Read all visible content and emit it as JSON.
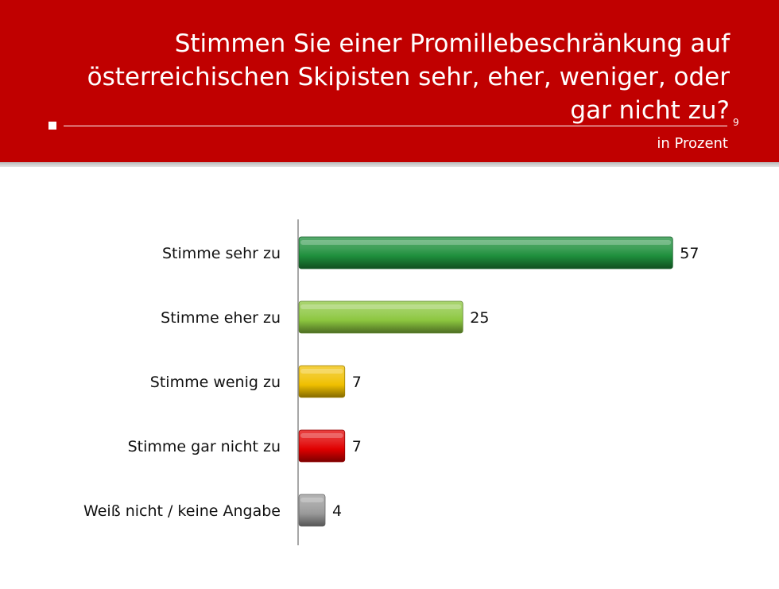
{
  "header": {
    "title_lines": [
      "Stimmen Sie einer Promillebeschränkung auf",
      "österreichischen Skipisten sehr, eher, weniger, oder",
      "gar nicht zu?"
    ],
    "page_number": "9",
    "unit": "in Prozent"
  },
  "colors": {
    "header_background": "#c00000",
    "bars": [
      "#1e8f3c",
      "#8cc63f",
      "#f0c000",
      "#e00000",
      "#9a9a9a"
    ]
  },
  "chart_data": {
    "type": "bar",
    "orientation": "horizontal",
    "categories": [
      "Stimme sehr zu",
      "Stimme eher zu",
      "Stimme wenig zu",
      "Stimme gar nicht zu",
      "Weiß nicht / keine Angabe"
    ],
    "values": [
      57,
      25,
      7,
      7,
      4
    ],
    "unit": "in Prozent",
    "xlim": [
      0,
      60
    ],
    "grid": false,
    "legend": "none",
    "data_labels": true
  }
}
